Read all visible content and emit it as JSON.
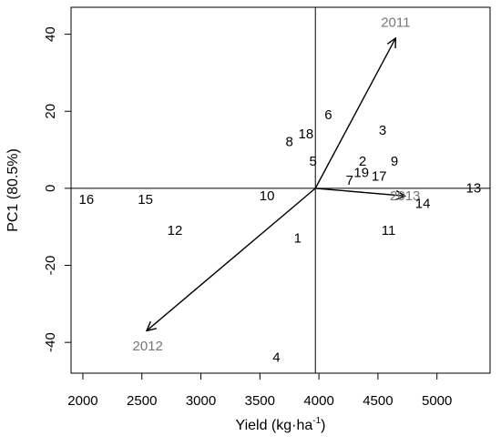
{
  "chart_data": {
    "type": "scatter",
    "title": "",
    "xlabel": "Yield (kg·ha",
    "xlabel_sup": "-1",
    "xlabel_end": ")",
    "ylabel": "PC1 (80.5%)",
    "xlim": [
      1900,
      5450
    ],
    "ylim": [
      -48,
      47
    ],
    "xticks": [
      2000,
      2500,
      3000,
      3500,
      4000,
      4500,
      5000
    ],
    "yticks": [
      -40,
      -20,
      0,
      20,
      40
    ],
    "xticklabels": [
      "2000",
      "2500",
      "3000",
      "3500",
      "4000",
      "4500",
      "5000"
    ],
    "yticklabels": [
      "-40",
      "-20",
      "0",
      "20",
      "40"
    ],
    "origin": {
      "x": 3970,
      "y": 0
    },
    "points": [
      {
        "label": "1",
        "x": 3820,
        "y": -13
      },
      {
        "label": "2",
        "x": 4370,
        "y": 7
      },
      {
        "label": "3",
        "x": 4540,
        "y": 15
      },
      {
        "label": "4",
        "x": 3640,
        "y": -44
      },
      {
        "label": "5",
        "x": 3950,
        "y": 7
      },
      {
        "label": "6",
        "x": 4080,
        "y": 19
      },
      {
        "label": "7",
        "x": 4260,
        "y": 2
      },
      {
        "label": "8",
        "x": 3750,
        "y": 12
      },
      {
        "label": "9",
        "x": 4640,
        "y": 7
      },
      {
        "label": "10",
        "x": 3560,
        "y": -2
      },
      {
        "label": "11",
        "x": 4590,
        "y": -11
      },
      {
        "label": "12",
        "x": 2780,
        "y": -11
      },
      {
        "label": "13",
        "x": 5310,
        "y": 0
      },
      {
        "label": "14",
        "x": 4880,
        "y": -4
      },
      {
        "label": "15",
        "x": 2530,
        "y": -3
      },
      {
        "label": "16",
        "x": 2030,
        "y": -3
      },
      {
        "label": "17",
        "x": 4510,
        "y": 3
      },
      {
        "label": "18",
        "x": 3890,
        "y": 14
      },
      {
        "label": "19",
        "x": 4360,
        "y": 4
      }
    ],
    "vectors": [
      {
        "label": "2011",
        "x": 4650,
        "y": 39,
        "label_x": 4650,
        "label_y": 43
      },
      {
        "label": "2012",
        "x": 2540,
        "y": -37,
        "label_x": 2550,
        "label_y": -41
      },
      {
        "label": "2013",
        "x": 4730,
        "y": -2,
        "label_x": 4730,
        "label_y": -2
      }
    ],
    "grid": false,
    "legend": "none",
    "colors": {
      "points": "#000000",
      "vectors": "#000000",
      "vector_labels": "#777777",
      "reference_lines": "#000000"
    }
  }
}
